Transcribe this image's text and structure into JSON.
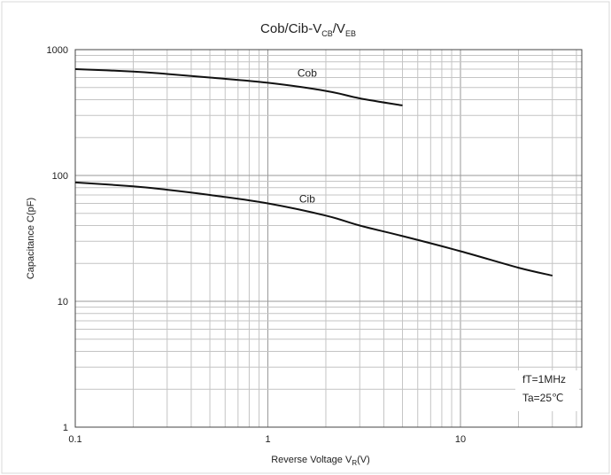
{
  "chart_data": {
    "type": "line",
    "title": {
      "base": "Cob/Cib-V",
      "sub1": "CB",
      "mid": "/V",
      "sub2": "EB"
    },
    "xlabel": {
      "base": "Reverse Voltage  V",
      "sub": "R",
      "suffix": "(V)"
    },
    "ylabel": "Capacitance  C(pF)",
    "xscale": "log",
    "yscale": "log",
    "xlim": [
      0.1,
      50
    ],
    "ylim": [
      1,
      1000
    ],
    "grid": true,
    "x_ticks": [
      {
        "value": 0.1,
        "label": "0.1"
      },
      {
        "value": 1,
        "label": "1"
      },
      {
        "value": 10,
        "label": "10"
      }
    ],
    "y_ticks": [
      {
        "value": 1,
        "label": "1"
      },
      {
        "value": 10,
        "label": "10"
      },
      {
        "value": 100,
        "label": "100"
      },
      {
        "value": 1000,
        "label": "1000"
      }
    ],
    "series": [
      {
        "name": "Cob",
        "color": "#111111",
        "x": [
          0.1,
          0.2,
          0.3,
          0.5,
          1,
          2,
          3,
          5
        ],
        "y": [
          700,
          670,
          640,
          600,
          545,
          470,
          410,
          360
        ],
        "label_at": {
          "x": 1.6,
          "y": 610
        }
      },
      {
        "name": "Cib",
        "color": "#111111",
        "x": [
          0.1,
          0.2,
          0.3,
          0.5,
          1,
          2,
          3,
          5,
          10,
          20,
          30
        ],
        "y": [
          88,
          82,
          77,
          70,
          60,
          48,
          40,
          33,
          25,
          18.5,
          16
        ],
        "label_at": {
          "x": 1.6,
          "y": 61
        }
      }
    ],
    "annotations": [
      "fT=1MHz",
      "Ta=25℃"
    ]
  }
}
